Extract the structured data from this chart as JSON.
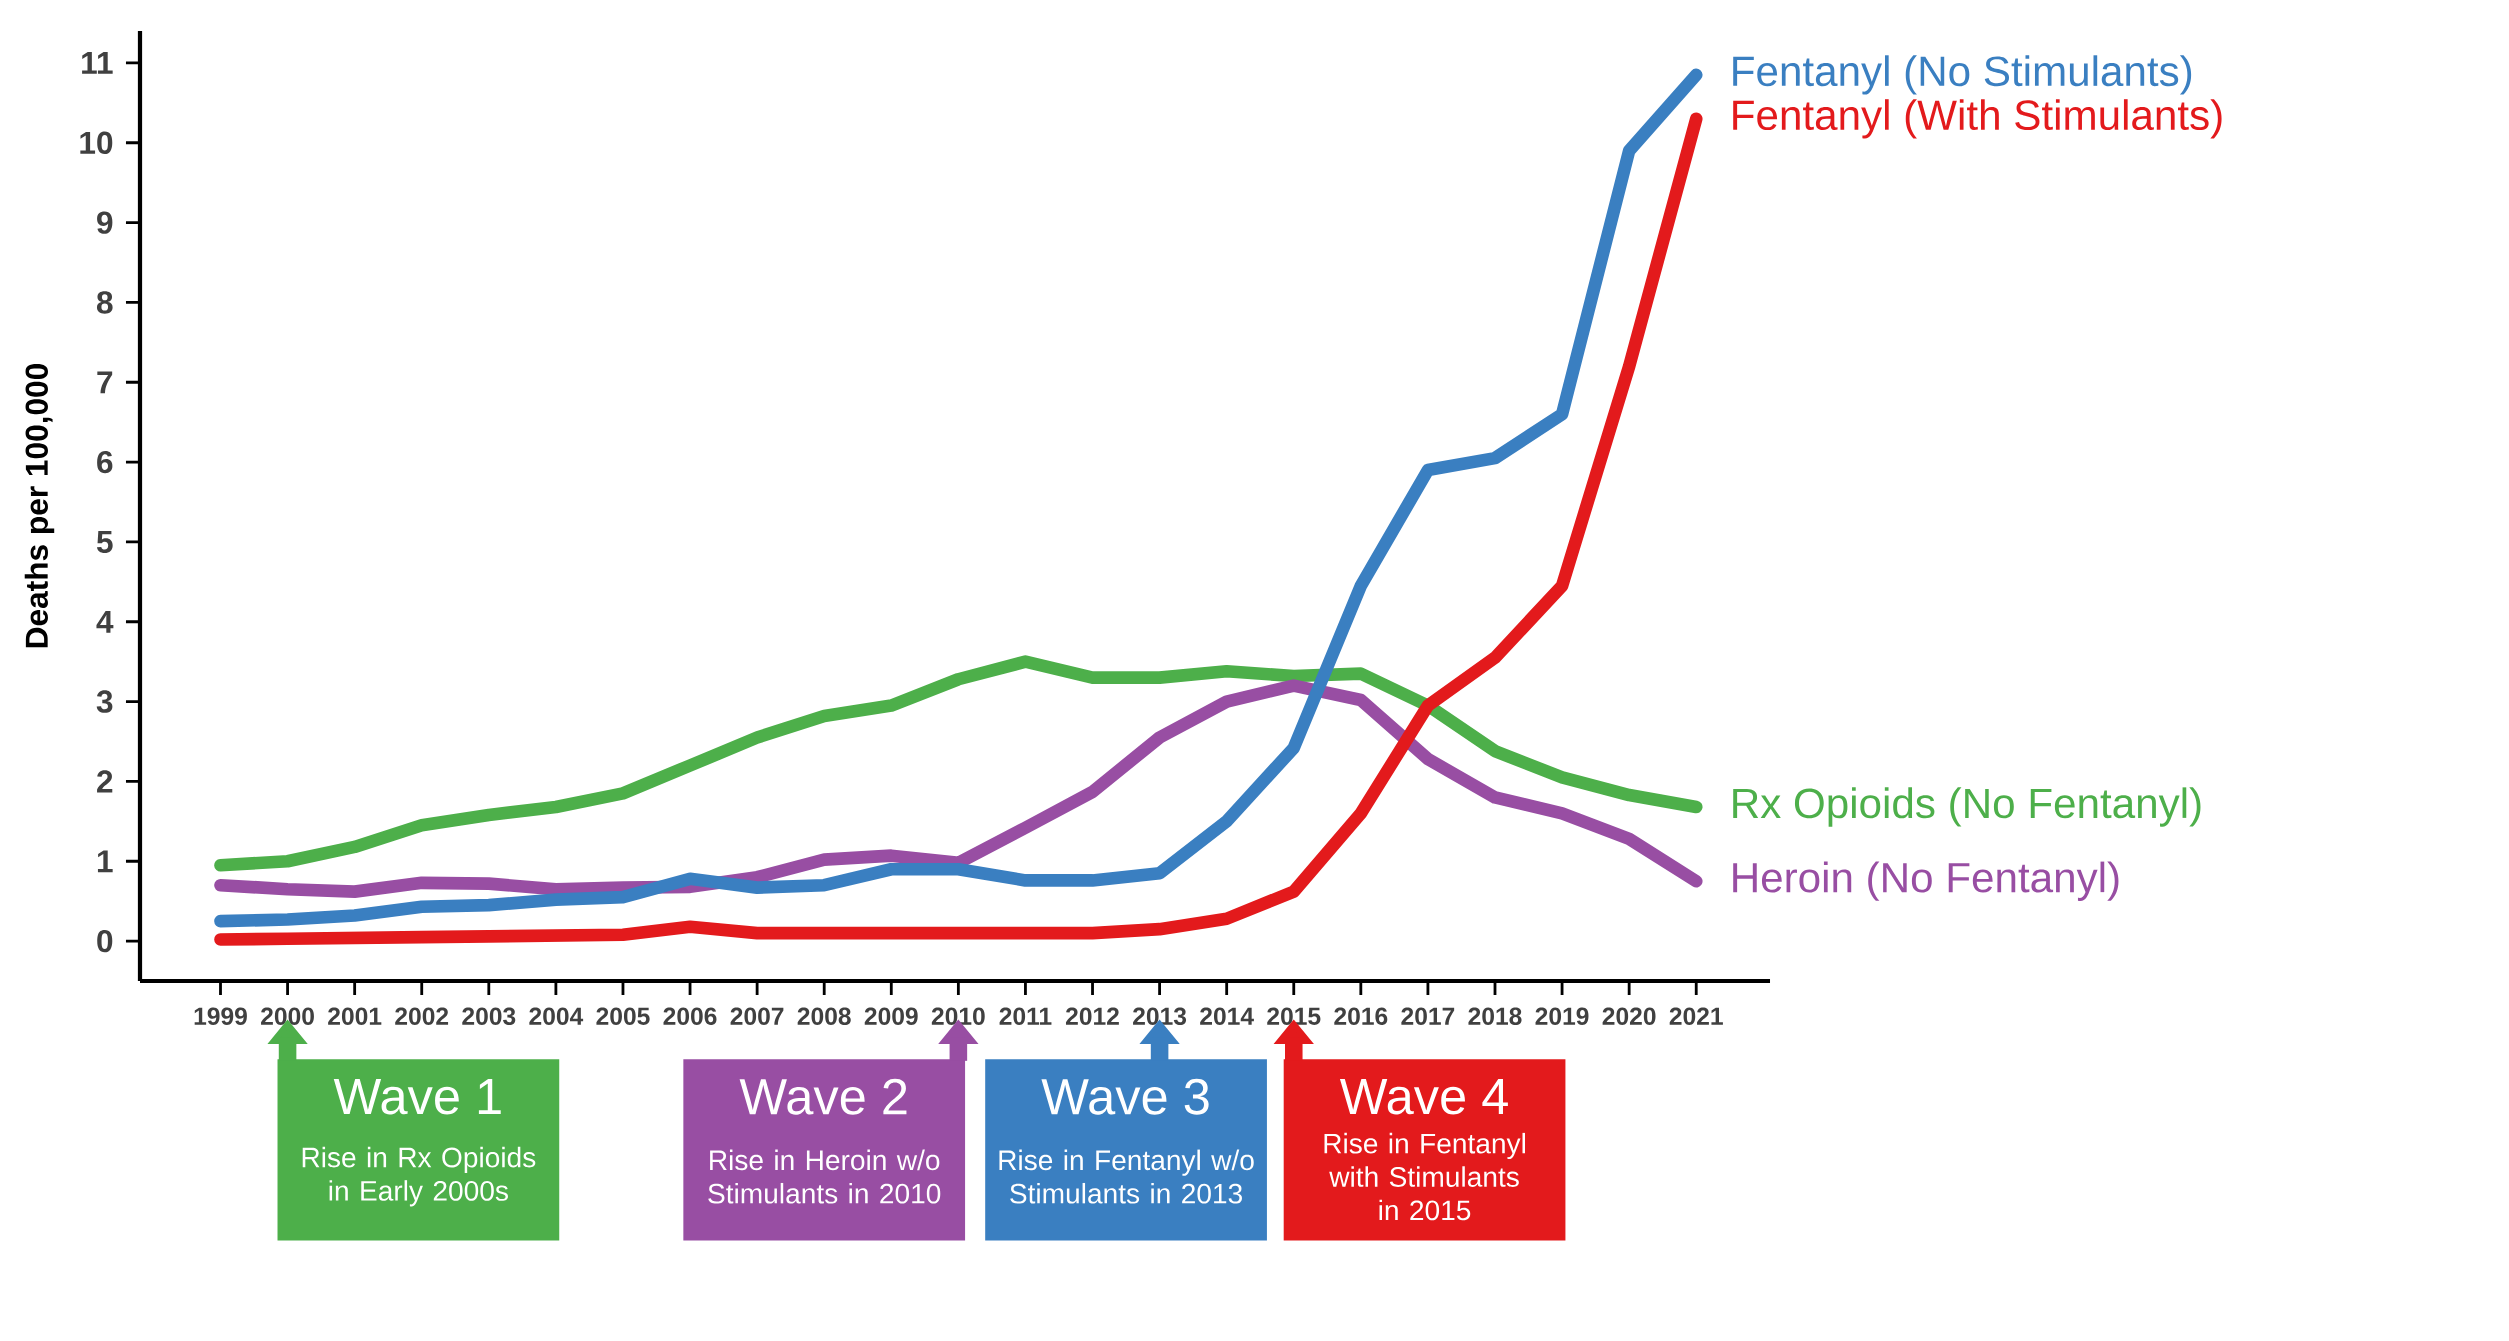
{
  "chart_data": {
    "type": "line",
    "ylabel": "Deaths per 100,000",
    "x": [
      1999,
      2000,
      2001,
      2002,
      2003,
      2004,
      2005,
      2006,
      2007,
      2008,
      2009,
      2010,
      2011,
      2012,
      2013,
      2014,
      2015,
      2016,
      2017,
      2018,
      2019,
      2020,
      2021
    ],
    "series": [
      {
        "name": "Rx Opioids (No Fentanyl)",
        "color": "#4daf4a",
        "values": [
          0.95,
          1.0,
          1.18,
          1.45,
          1.58,
          1.68,
          1.85,
          2.2,
          2.55,
          2.82,
          2.95,
          3.28,
          3.5,
          3.3,
          3.3,
          3.38,
          3.32,
          3.35,
          2.95,
          2.38,
          2.05,
          1.83,
          1.68
        ]
      },
      {
        "name": "Heroin (No Fentanyl)",
        "color": "#984ea3",
        "values": [
          0.7,
          0.65,
          0.62,
          0.73,
          0.72,
          0.65,
          0.67,
          0.68,
          0.8,
          1.02,
          1.07,
          0.98,
          1.42,
          1.87,
          2.55,
          3.0,
          3.2,
          3.02,
          2.28,
          1.8,
          1.6,
          1.28,
          0.75
        ]
      },
      {
        "name": "Fentanyl (No Stimulants)",
        "color": "#3a7fc1",
        "values": [
          0.25,
          0.27,
          0.32,
          0.43,
          0.45,
          0.52,
          0.55,
          0.78,
          0.67,
          0.7,
          0.9,
          0.9,
          0.76,
          0.76,
          0.85,
          1.5,
          2.42,
          4.45,
          5.9,
          6.05,
          6.6,
          9.9,
          10.85
        ]
      },
      {
        "name": "Fentanyl (With Stimulants)",
        "color": "#e31a1c",
        "values": [
          0.02,
          0.03,
          0.04,
          0.05,
          0.06,
          0.07,
          0.08,
          0.18,
          0.1,
          0.1,
          0.1,
          0.1,
          0.1,
          0.1,
          0.15,
          0.28,
          0.62,
          1.6,
          2.95,
          3.55,
          4.45,
          7.2,
          10.3
        ]
      }
    ],
    "xlim": [
      1997.8,
      2022.1
    ],
    "ylim": [
      -0.5,
      11.4
    ],
    "xticks": [
      1999,
      2000,
      2001,
      2002,
      2003,
      2004,
      2005,
      2006,
      2007,
      2008,
      2009,
      2010,
      2011,
      2012,
      2013,
      2014,
      2015,
      2016,
      2017,
      2018,
      2019,
      2020,
      2021
    ],
    "yticks": [
      0,
      1,
      2,
      3,
      4,
      5,
      6,
      7,
      8,
      9,
      10,
      11
    ],
    "marker": "none",
    "line_style": "solid",
    "annotations": [
      "Wave 1",
      "Rise in Rx Opioids in Early 2000s",
      "Wave 2",
      "Rise in Heroin w/o Stimulants in 2010",
      "Wave 3",
      "Rise in Fentanyl w/o Stimulants in 2013",
      "Wave 4",
      "Rise in Fentanyl with Stimulants in 2015"
    ]
  }
}
